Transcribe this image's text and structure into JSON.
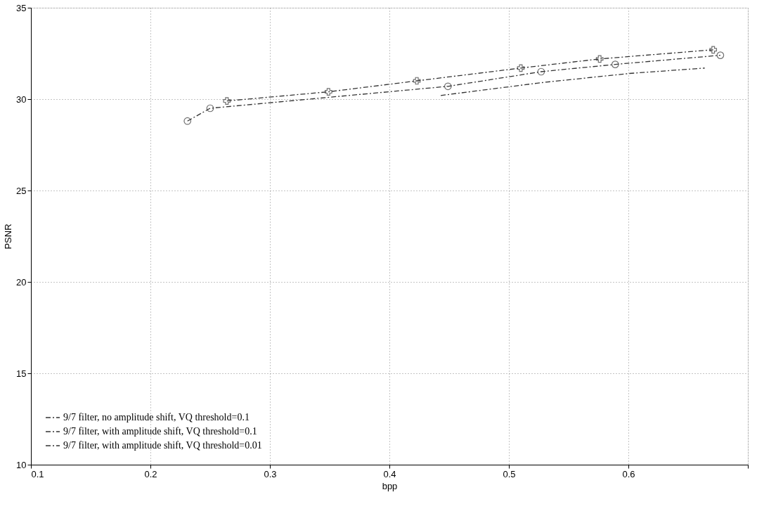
{
  "chart_data": {
    "type": "line",
    "xlabel": "bpp",
    "ylabel": "PSNR",
    "xlim": [
      0.1,
      0.7
    ],
    "xticks": [
      0.1,
      0.2,
      0.3,
      0.4,
      0.5,
      0.6,
      {
        "value": 0.7,
        "label": null
      }
    ],
    "ylim": [
      10,
      35
    ],
    "yticks": [
      10,
      15,
      20,
      25,
      30,
      35
    ],
    "grid": true,
    "legend": "bottom left",
    "line_style": "dashed",
    "series": [
      {
        "name": "9/7 filter, no amplitude shift, VQ threshold=0.1",
        "color": "#333333",
        "marker": "none",
        "x": [
          0.443,
          0.527,
          0.6,
          0.664
        ],
        "values": [
          30.2,
          30.9,
          31.4,
          31.7
        ]
      },
      {
        "name": "9/7 filter, with amplitude shift, VQ threshold=0.1",
        "color": "#333333",
        "marker": "circle",
        "x": [
          0.231,
          0.25,
          0.449,
          0.527,
          0.589,
          0.677
        ],
        "values": [
          28.8,
          29.5,
          30.7,
          31.5,
          31.9,
          32.4
        ]
      },
      {
        "name": "9/7 filter, with amplitude shift, VQ threshold=0.01",
        "color": "#333333",
        "marker": "cross",
        "x": [
          0.264,
          0.349,
          0.423,
          0.51,
          0.576,
          0.671
        ],
        "values": [
          29.9,
          30.4,
          31.0,
          31.7,
          32.2,
          32.7
        ]
      }
    ]
  }
}
